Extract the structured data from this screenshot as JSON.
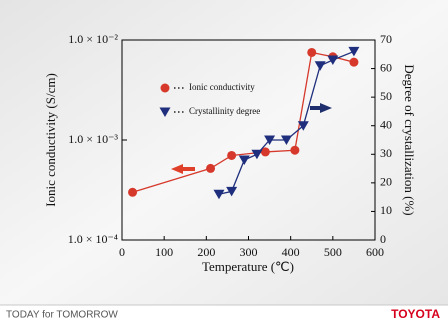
{
  "chart_data": {
    "type": "line",
    "x_label": "Temperature (℃)",
    "y_label": "Ionic conductivity (S/cm)",
    "y2_label": "Degree of crystallization (%)",
    "xlim": [
      0,
      600
    ],
    "xticks": [
      0,
      100,
      200,
      300,
      400,
      500,
      600
    ],
    "ylim": [
      0.0001,
      0.01
    ],
    "yscale": "log",
    "yticks": [
      {
        "value": 0.0001,
        "label": "1.0 × 10⁻⁴"
      },
      {
        "value": 0.001,
        "label": "1.0 × 10⁻³"
      },
      {
        "value": 0.01,
        "label": "1.0 × 10⁻²"
      }
    ],
    "y2lim": [
      0,
      70
    ],
    "y2ticks": [
      0,
      10,
      20,
      30,
      40,
      50,
      60,
      70
    ],
    "series": [
      {
        "name": "Ionic conductivity",
        "color": "#d6392b",
        "marker": "circle",
        "x": [
          25,
          210,
          260,
          340,
          410,
          450,
          500,
          550
        ],
        "values": [
          0.0003,
          0.00052,
          0.0007,
          0.00076,
          0.00079,
          0.0075,
          0.0068,
          0.006
        ]
      },
      {
        "name": "Crystallinity degree",
        "color": "#1f2f7d",
        "marker": "triangle-down",
        "axis": "y2",
        "x": [
          230,
          260,
          290,
          320,
          350,
          390,
          430,
          470,
          500,
          550
        ],
        "values": [
          16,
          17,
          28,
          30,
          35,
          35,
          40,
          61,
          63,
          66
        ]
      }
    ],
    "footer_left": "TODAY for TOMORROW",
    "footer_right": "TOYOTA"
  }
}
